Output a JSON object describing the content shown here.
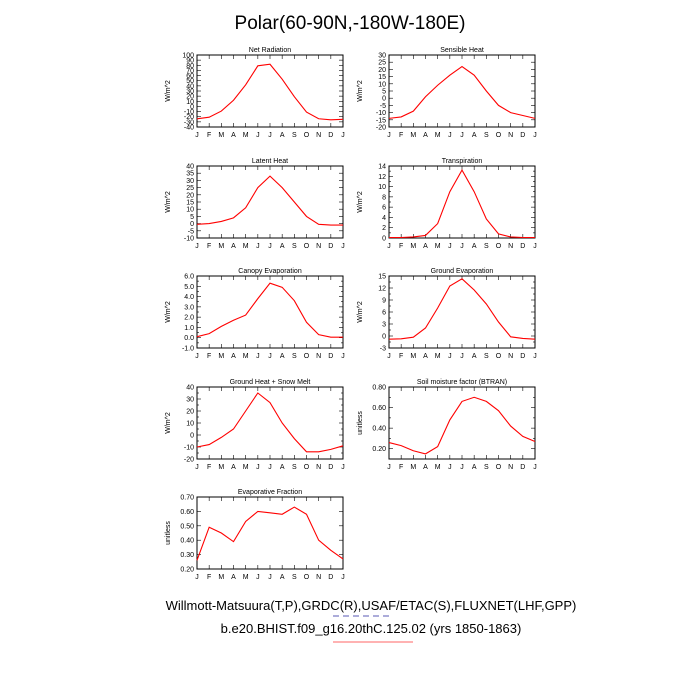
{
  "title": "Polar(60-90N,-180W-180E)",
  "footer": {
    "line1": "Willmott-Matsuura(T,P),GRDC(R),USAF/ETAC(S),FLUXNET(LHF,GPP)",
    "line2": "b.e20.BHIST.f09_g16.20thC.125.02 (yrs 1850-1863)"
  },
  "colors": {
    "series": "#ff0000",
    "axis": "#000000",
    "footer_underline": "#ff6666",
    "footer_dash": "#5a5ab4"
  },
  "chart_data": [
    {
      "type": "line",
      "title": "Net Radiation",
      "ylabel": "W/m^2",
      "ylim": [
        -40,
        100
      ],
      "yticks": [
        -40,
        -30,
        -20,
        -10,
        0,
        10,
        20,
        30,
        40,
        50,
        60,
        70,
        80,
        90,
        100
      ],
      "ytick_labels": [
        "-40",
        "-30",
        "-20",
        "-10",
        "0",
        "10",
        "20",
        "30",
        "40",
        "50",
        "60",
        "70",
        "80",
        "90",
        "100"
      ],
      "categories": [
        "J",
        "F",
        "M",
        "A",
        "M",
        "J",
        "J",
        "A",
        "S",
        "O",
        "N",
        "D",
        "J"
      ],
      "values": [
        -24,
        -21,
        -9,
        12,
        42,
        79,
        82,
        53,
        19,
        -11,
        -24,
        -26,
        -25
      ]
    },
    {
      "type": "line",
      "title": "Sensible Heat",
      "ylabel": "W/m^2",
      "ylim": [
        -20,
        30
      ],
      "yticks": [
        -20,
        -15,
        -10,
        -5,
        0,
        5,
        10,
        15,
        20,
        25,
        30
      ],
      "ytick_labels": [
        "-20",
        "-15",
        "-10",
        "-5",
        "0",
        "5",
        "10",
        "15",
        "20",
        "25",
        "30"
      ],
      "categories": [
        "J",
        "F",
        "M",
        "A",
        "M",
        "J",
        "J",
        "A",
        "S",
        "O",
        "N",
        "D",
        "J"
      ],
      "values": [
        -14,
        -13,
        -9,
        1,
        9,
        16,
        22,
        16,
        5,
        -5,
        -10,
        -12,
        -14
      ]
    },
    {
      "type": "line",
      "title": "Latent Heat",
      "ylabel": "W/m^2",
      "ylim": [
        -10,
        40
      ],
      "yticks": [
        -10,
        -5,
        0,
        5,
        10,
        15,
        20,
        25,
        30,
        35,
        40
      ],
      "ytick_labels": [
        "-10",
        "-5",
        "0",
        "5",
        "10",
        "15",
        "20",
        "25",
        "30",
        "35",
        "40"
      ],
      "categories": [
        "J",
        "F",
        "M",
        "A",
        "M",
        "J",
        "J",
        "A",
        "S",
        "O",
        "N",
        "D",
        "J"
      ],
      "values": [
        -0.5,
        0,
        1.5,
        4,
        11,
        25,
        33,
        25,
        15,
        5,
        -0.5,
        -1,
        -1
      ]
    },
    {
      "type": "line",
      "title": "Transpiration",
      "ylabel": "W/m^2",
      "ylim": [
        0,
        14
      ],
      "yticks": [
        0,
        1,
        2,
        3,
        4,
        5,
        6,
        7,
        8,
        9,
        10,
        11,
        12,
        13,
        14
      ],
      "ytick_labels": [
        "0",
        "",
        "2",
        "",
        "4",
        "",
        "6",
        "",
        "8",
        "",
        "10",
        "",
        "12",
        "",
        "14"
      ],
      "categories": [
        "J",
        "F",
        "M",
        "A",
        "M",
        "J",
        "J",
        "A",
        "S",
        "O",
        "N",
        "D",
        "J"
      ],
      "values": [
        0.1,
        0.1,
        0.2,
        0.5,
        2.8,
        9,
        13.2,
        9,
        3.7,
        0.8,
        0.2,
        0.1,
        0.1
      ]
    },
    {
      "type": "line",
      "title": "Canopy Evaporation",
      "ylabel": "W/m^2",
      "ylim": [
        -1.0,
        6.0
      ],
      "yticks": [
        -1.0,
        -0.5,
        0.0,
        0.5,
        1.0,
        1.5,
        2.0,
        2.5,
        3.0,
        3.5,
        4.0,
        4.5,
        5.0,
        5.5,
        6.0
      ],
      "ytick_labels": [
        "-1.0",
        "",
        "0.0",
        "",
        "1.0",
        "",
        "2.0",
        "",
        "3.0",
        "",
        "4.0",
        "",
        "5.0",
        "",
        "6.0"
      ],
      "categories": [
        "J",
        "F",
        "M",
        "A",
        "M",
        "J",
        "J",
        "A",
        "S",
        "O",
        "N",
        "D",
        "J"
      ],
      "values": [
        0.1,
        0.4,
        1.1,
        1.7,
        2.2,
        3.8,
        5.3,
        4.9,
        3.6,
        1.5,
        0.3,
        0.05,
        0.05
      ]
    },
    {
      "type": "line",
      "title": "Ground Evaporation",
      "ylabel": "W/m^2",
      "ylim": [
        -3,
        15
      ],
      "yticks": [
        -3,
        -1.5,
        0,
        1.5,
        3,
        4.5,
        6,
        7.5,
        9,
        10.5,
        12,
        13.5,
        15
      ],
      "ytick_labels": [
        "-3",
        "",
        "0",
        "",
        "3",
        "",
        "6",
        "",
        "9",
        "",
        "12",
        "",
        "15"
      ],
      "categories": [
        "J",
        "F",
        "M",
        "A",
        "M",
        "J",
        "J",
        "A",
        "S",
        "O",
        "N",
        "D",
        "J"
      ],
      "values": [
        -0.8,
        -0.7,
        -0.3,
        2,
        7,
        12.5,
        14.3,
        11.5,
        8,
        3.5,
        -0.2,
        -0.6,
        -0.8
      ]
    },
    {
      "type": "line",
      "title": "Ground Heat + Snow Melt",
      "ylabel": "W/m^2",
      "ylim": [
        -20,
        40
      ],
      "yticks": [
        -20,
        -15,
        -10,
        -5,
        0,
        5,
        10,
        15,
        20,
        25,
        30,
        35,
        40
      ],
      "ytick_labels": [
        "-20",
        "",
        "-10",
        "",
        "0",
        "",
        "10",
        "",
        "20",
        "",
        "30",
        "",
        "40"
      ],
      "categories": [
        "J",
        "F",
        "M",
        "A",
        "M",
        "J",
        "J",
        "A",
        "S",
        "O",
        "N",
        "D",
        "J"
      ],
      "values": [
        -10,
        -8,
        -2,
        5,
        20,
        35,
        27,
        10,
        -3,
        -14,
        -14,
        -12,
        -9
      ]
    },
    {
      "type": "line",
      "title": "Soil moisture factor (BTRAN)",
      "ylabel": "unitless",
      "ylim": [
        0.1,
        0.8
      ],
      "yticks": [
        0.1,
        0.2,
        0.3,
        0.4,
        0.5,
        0.6,
        0.7,
        0.8
      ],
      "ytick_labels": [
        "",
        "0.20",
        "",
        "0.40",
        "",
        "0.60",
        "",
        "0.80"
      ],
      "categories": [
        "J",
        "F",
        "M",
        "A",
        "M",
        "J",
        "J",
        "A",
        "S",
        "O",
        "N",
        "D",
        "J"
      ],
      "values": [
        0.26,
        0.23,
        0.18,
        0.15,
        0.22,
        0.48,
        0.66,
        0.7,
        0.66,
        0.57,
        0.42,
        0.32,
        0.27
      ]
    },
    {
      "type": "line",
      "title": "Evaporative Fraction",
      "ylabel": "unitless",
      "ylim": [
        0.2,
        0.7
      ],
      "yticks": [
        0.2,
        0.3,
        0.4,
        0.5,
        0.6,
        0.7
      ],
      "ytick_labels": [
        "0.20",
        "0.30",
        "0.40",
        "0.50",
        "0.60",
        "0.70"
      ],
      "categories": [
        "J",
        "F",
        "M",
        "A",
        "M",
        "J",
        "J",
        "A",
        "S",
        "O",
        "N",
        "D",
        "J"
      ],
      "values": [
        0.26,
        0.49,
        0.45,
        0.39,
        0.53,
        0.6,
        0.59,
        0.58,
        0.63,
        0.58,
        0.4,
        0.33,
        0.27
      ]
    }
  ]
}
